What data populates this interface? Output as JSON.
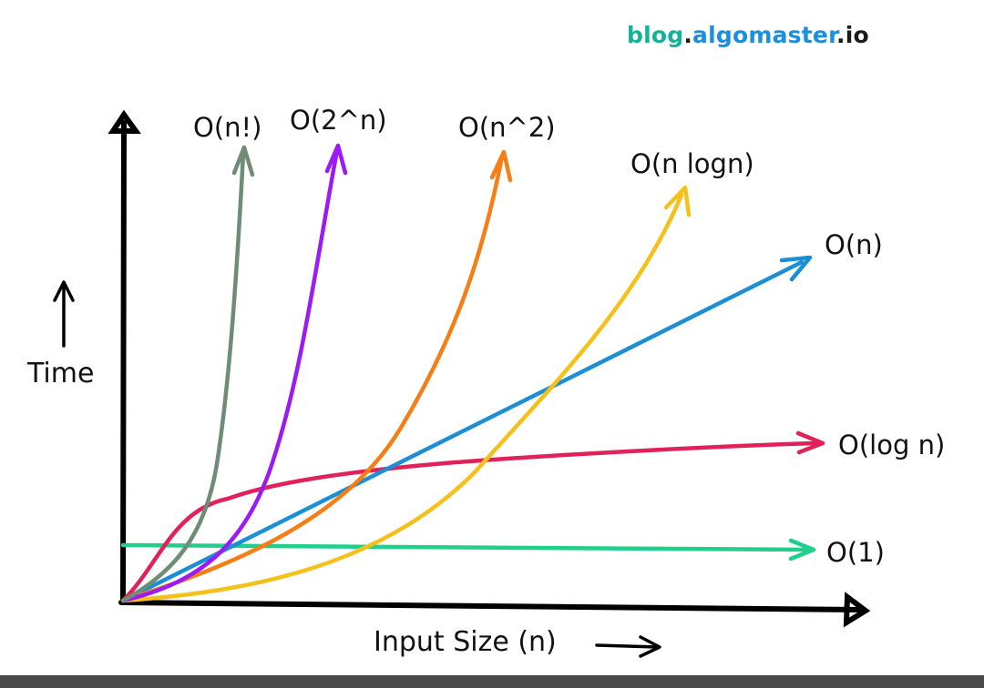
{
  "watermark": {
    "part1": "blog",
    "dot1": ".",
    "part2": "algomaster",
    "dot2": ".",
    "part3": "io"
  },
  "axes": {
    "y_label": "Time",
    "x_label": "Input Size (n)"
  },
  "curves": [
    {
      "key": "o1",
      "label": "O(1)",
      "color": "#1fcf8a"
    },
    {
      "key": "ologn",
      "label": "O(log n)",
      "color": "#e0215a"
    },
    {
      "key": "on",
      "label": "O(n)",
      "color": "#1b8fd6"
    },
    {
      "key": "onlogn",
      "label": "O(n logn)",
      "color": "#f5c01a"
    },
    {
      "key": "on2",
      "label": "O(n^2)",
      "color": "#f77e14"
    },
    {
      "key": "o2n",
      "label": "O(2^n)",
      "color": "#9b1cf2"
    },
    {
      "key": "onf",
      "label": "O(n!)",
      "color": "#6f8c76"
    }
  ],
  "colors": {
    "axis": "#000000",
    "text": "#111111"
  }
}
